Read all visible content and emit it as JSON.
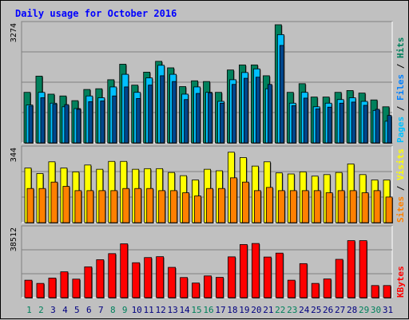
{
  "title": "Daily usage for October 2016",
  "colors": {
    "hits": "#00805c",
    "files": "#0080ff",
    "pages": "#00c0ff",
    "visits": "#ffff00",
    "sites": "#ff8000",
    "kbytes": "#ff0000",
    "title": "#0000ff",
    "weekend": "#00805c",
    "weekday": "#000080"
  },
  "chart_data": [
    {
      "type": "bar",
      "name": "hits-files-pages",
      "categories": [
        "1",
        "2",
        "3",
        "4",
        "5",
        "6",
        "7",
        "8",
        "9",
        "10",
        "11",
        "12",
        "13",
        "14",
        "15",
        "16",
        "17",
        "18",
        "19",
        "20",
        "21",
        "22",
        "23",
        "24",
        "25",
        "26",
        "27",
        "28",
        "29",
        "30",
        "31"
      ],
      "ymax_label": "3274",
      "ylim": [
        0,
        3274
      ],
      "right_labels": [
        "Pages",
        "Files",
        "Hits"
      ],
      "series": [
        {
          "name": "Hits",
          "values": [
            1400,
            1850,
            1350,
            1300,
            1170,
            1480,
            1500,
            1750,
            2180,
            1600,
            1960,
            2260,
            2080,
            1560,
            1720,
            1700,
            1400,
            2020,
            2160,
            2160,
            1860,
            3274,
            1400,
            1640,
            1270,
            1270,
            1400,
            1450,
            1380,
            1190,
            1000
          ]
        },
        {
          "name": "Files",
          "values": [
            1020,
            1250,
            1070,
            1060,
            930,
            1140,
            1160,
            1300,
            1550,
            1230,
            1600,
            1860,
            1700,
            1200,
            1370,
            1380,
            1100,
            1620,
            1790,
            1820,
            1620,
            2700,
            1030,
            1240,
            940,
            990,
            1100,
            1130,
            1040,
            930,
            760
          ]
        },
        {
          "name": "Pages",
          "values": [
            1050,
            1400,
            1100,
            1000,
            950,
            1300,
            1250,
            1550,
            1900,
            1400,
            1800,
            2150,
            1900,
            1350,
            1550,
            1400,
            1150,
            1750,
            1950,
            2050,
            1500,
            3000,
            1100,
            1400,
            1000,
            1100,
            1200,
            1250,
            1150,
            900,
            600
          ]
        }
      ]
    },
    {
      "type": "bar",
      "name": "visits-sites",
      "categories": [
        "1",
        "2",
        "3",
        "4",
        "5",
        "6",
        "7",
        "8",
        "9",
        "10",
        "11",
        "12",
        "13",
        "14",
        "15",
        "16",
        "17",
        "18",
        "19",
        "20",
        "21",
        "22",
        "23",
        "24",
        "25",
        "26",
        "27",
        "28",
        "29",
        "30",
        "31"
      ],
      "ymax_label": "344",
      "ylim": [
        0,
        344
      ],
      "right_labels": [
        "Sites",
        "Visits"
      ],
      "series": [
        {
          "name": "Visits",
          "values": [
            256,
            230,
            285,
            256,
            238,
            270,
            250,
            287,
            287,
            250,
            253,
            253,
            235,
            220,
            200,
            250,
            243,
            330,
            305,
            265,
            285,
            233,
            228,
            238,
            218,
            225,
            235,
            275,
            225,
            200,
            200
          ]
        },
        {
          "name": "Sites",
          "values": [
            160,
            160,
            190,
            170,
            150,
            150,
            150,
            150,
            160,
            160,
            160,
            150,
            150,
            140,
            125,
            160,
            160,
            210,
            190,
            150,
            165,
            150,
            150,
            150,
            150,
            140,
            150,
            150,
            140,
            150,
            120
          ]
        }
      ]
    },
    {
      "type": "bar",
      "name": "kbytes",
      "categories": [
        "1",
        "2",
        "3",
        "4",
        "5",
        "6",
        "7",
        "8",
        "9",
        "10",
        "11",
        "12",
        "13",
        "14",
        "15",
        "16",
        "17",
        "18",
        "19",
        "20",
        "21",
        "22",
        "23",
        "24",
        "25",
        "26",
        "27",
        "28",
        "29",
        "30",
        "31"
      ],
      "ymax_label": "38512",
      "ylim": [
        0,
        38512
      ],
      "right_labels": [
        "KBytes"
      ],
      "series": [
        {
          "name": "KBytes",
          "values": [
            9800,
            8000,
            11000,
            14500,
            10400,
            17300,
            21300,
            24700,
            30200,
            19600,
            22500,
            23000,
            17000,
            11300,
            8200,
            12200,
            11400,
            22900,
            29800,
            30400,
            22800,
            25000,
            9800,
            19100,
            8000,
            10500,
            21500,
            32000,
            32000,
            6800,
            6800
          ]
        }
      ]
    }
  ]
}
